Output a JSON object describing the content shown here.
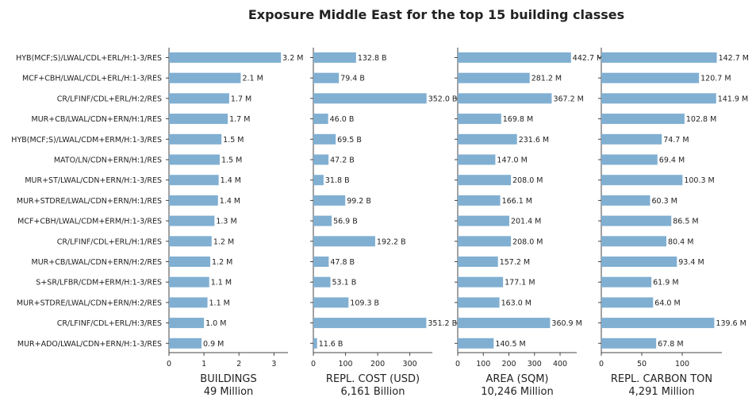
{
  "chart_data": {
    "type": "bar",
    "title": "Exposure Middle East for the top 15 building classes",
    "bar_color": "#80afd2",
    "categories": [
      "HYB(MCF;S)/LWAL/CDL+ERL/H:1-3/RES",
      "MCF+CBH/LWAL/CDL+ERL/H:1-3/RES",
      "CR/LFINF/CDL+ERL/H:2/RES",
      "MUR+CB/LWAL/CDN+ERN/H:1/RES",
      "HYB(MCF;S)/LWAL/CDM+ERM/H:1-3/RES",
      "MATO/LN/CDN+ERN/H:1/RES",
      "MUR+ST/LWAL/CDN+ERN/H:1-3/RES",
      "MUR+STDRE/LWAL/CDN+ERN/H:1/RES",
      "MCF+CBH/LWAL/CDM+ERM/H:1-3/RES",
      "CR/LFINF/CDL+ERL/H:1/RES",
      "MUR+CB/LWAL/CDN+ERN/H:2/RES",
      "S+SR/LFBR/CDM+ERM/H:1-3/RES",
      "MUR+STDRE/LWAL/CDN+ERN/H:2/RES",
      "CR/LFINF/CDL+ERL/H:3/RES",
      "MUR+ADO/LWAL/CDN+ERN/H:1-3/RES"
    ],
    "panels": [
      {
        "xlabel": "BUILDINGS",
        "total": "49 Million",
        "xlim": [
          0,
          3.4
        ],
        "ticks": [
          0,
          1,
          2,
          3
        ],
        "values": [
          3.2,
          2.05,
          1.72,
          1.68,
          1.5,
          1.45,
          1.42,
          1.4,
          1.3,
          1.22,
          1.18,
          1.15,
          1.1,
          1.0,
          0.93
        ],
        "labels": [
          "3.2 M",
          "2.1 M",
          "1.7 M",
          "1.7 M",
          "1.5 M",
          "1.5 M",
          "1.4 M",
          "1.4 M",
          "1.3 M",
          "1.2 M",
          "1.2 M",
          "1.1 M",
          "1.1 M",
          "1.0 M",
          "0.9 M"
        ]
      },
      {
        "xlabel": "REPL. COST (USD)",
        "total": "6,161 Billion",
        "xlim": [
          0,
          370
        ],
        "ticks": [
          0,
          100,
          200,
          300
        ],
        "values": [
          132.8,
          79.4,
          352.0,
          46.0,
          69.5,
          47.2,
          31.8,
          99.2,
          56.9,
          192.2,
          47.8,
          53.1,
          109.3,
          351.2,
          11.6
        ],
        "labels": [
          "132.8 B",
          "79.4 B",
          "352.0 B",
          "46.0 B",
          "69.5 B",
          "47.2 B",
          "31.8 B",
          "99.2 B",
          "56.9 B",
          "192.2 B",
          "47.8 B",
          "53.1 B",
          "109.3 B",
          "351.2 B",
          "11.6 B"
        ]
      },
      {
        "xlabel": "AREA (SQM)",
        "total": "10,246 Million",
        "xlim": [
          0,
          465
        ],
        "ticks": [
          0,
          100,
          200,
          300,
          400
        ],
        "values": [
          442.7,
          281.2,
          367.2,
          169.8,
          231.6,
          147.0,
          208.0,
          166.1,
          201.4,
          208.0,
          157.2,
          177.1,
          163.0,
          360.9,
          140.5
        ],
        "labels": [
          "442.7 M",
          "281.2 M",
          "367.2 M",
          "169.8 M",
          "231.6 M",
          "147.0 M",
          "208.0 M",
          "166.1 M",
          "201.4 M",
          "208.0 M",
          "157.2 M",
          "177.1 M",
          "163.0 M",
          "360.9 M",
          "140.5 M"
        ]
      },
      {
        "xlabel": "REPL. CARBON TON",
        "total": "4,291 Million",
        "xlim": [
          0,
          149
        ],
        "ticks": [
          0,
          50,
          100
        ],
        "values": [
          142.7,
          120.7,
          141.9,
          102.8,
          74.7,
          69.4,
          100.3,
          60.3,
          86.5,
          80.4,
          93.4,
          61.9,
          64.0,
          139.6,
          67.8
        ],
        "labels": [
          "142.7 M",
          "120.7 M",
          "141.9 M",
          "102.8 M",
          "74.7 M",
          "69.4 M",
          "100.3 M",
          "60.3 M",
          "86.5 M",
          "80.4 M",
          "93.4 M",
          "61.9 M",
          "64.0 M",
          "139.6 M",
          "67.8 M"
        ]
      }
    ]
  }
}
